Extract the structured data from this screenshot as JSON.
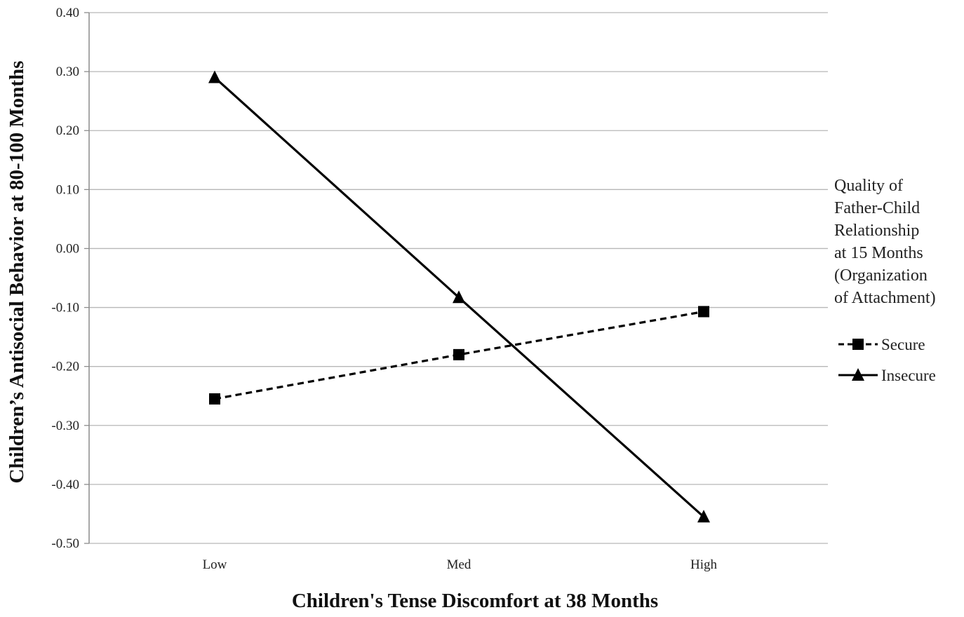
{
  "chart_data": {
    "type": "line",
    "xlabel": "Children's Tense Discomfort at 38 Months",
    "ylabel": "Children’s Antisocial Behavior at 80-100 Months",
    "categories": [
      "Low",
      "Med",
      "High"
    ],
    "y_ticks": [
      "0.40",
      "0.30",
      "0.20",
      "0.10",
      "0.00",
      "-0.10",
      "-0.20",
      "-0.30",
      "-0.40",
      "-0.50"
    ],
    "ylim": [
      -0.5,
      0.4
    ],
    "grid": true,
    "legend": {
      "position": "right",
      "title_lines": [
        "Quality of",
        "Father-Child",
        "Relationship",
        "at 15 Months",
        "(Organization",
        "of Attachment)"
      ]
    },
    "series": [
      {
        "name": "Secure",
        "values": [
          -0.255,
          -0.18,
          -0.107
        ],
        "line_style": "dashed",
        "marker": "square",
        "color": "#000000"
      },
      {
        "name": "Insecure",
        "values": [
          0.29,
          -0.083,
          -0.455
        ],
        "line_style": "solid",
        "marker": "triangle",
        "color": "#000000"
      }
    ],
    "colors": {
      "grid": "#b7b7b7",
      "axis": "#8c8c8c"
    }
  }
}
